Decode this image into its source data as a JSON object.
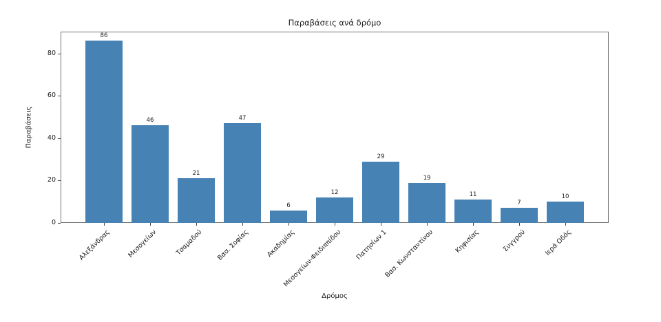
{
  "figure": {
    "background": "#ffffff",
    "spine_color": "#6e6e6e",
    "text_color": "#1a1a1a"
  },
  "chart_data": {
    "type": "bar",
    "title": "Παραβάσεις ανά δρόμο",
    "xlabel": "Δρόμος",
    "ylabel": "Παραβάσεις",
    "categories": [
      "Αλεξάνδρας",
      "Μεσογείων",
      "Τσαμαδού",
      "Βασ. Σοφίας",
      "Ακαδημίας",
      "Μεσογείων-Φειδιππίδου",
      "Πατησίων 1",
      "Βασ. Κωνσταντίνου",
      "Κηφισίας",
      "Συγγρού",
      "Ιερά Οδός"
    ],
    "values": [
      86,
      46,
      21,
      47,
      6,
      12,
      29,
      19,
      11,
      7,
      10
    ],
    "yticks": [
      0,
      20,
      40,
      60,
      80
    ],
    "ylim": [
      0,
      90.3
    ],
    "bar_color": "#4682B4",
    "bar_width_fraction": 0.8,
    "show_value_labels": true,
    "grid": false,
    "legend_position": "none",
    "x_tick_rotation": 45
  }
}
